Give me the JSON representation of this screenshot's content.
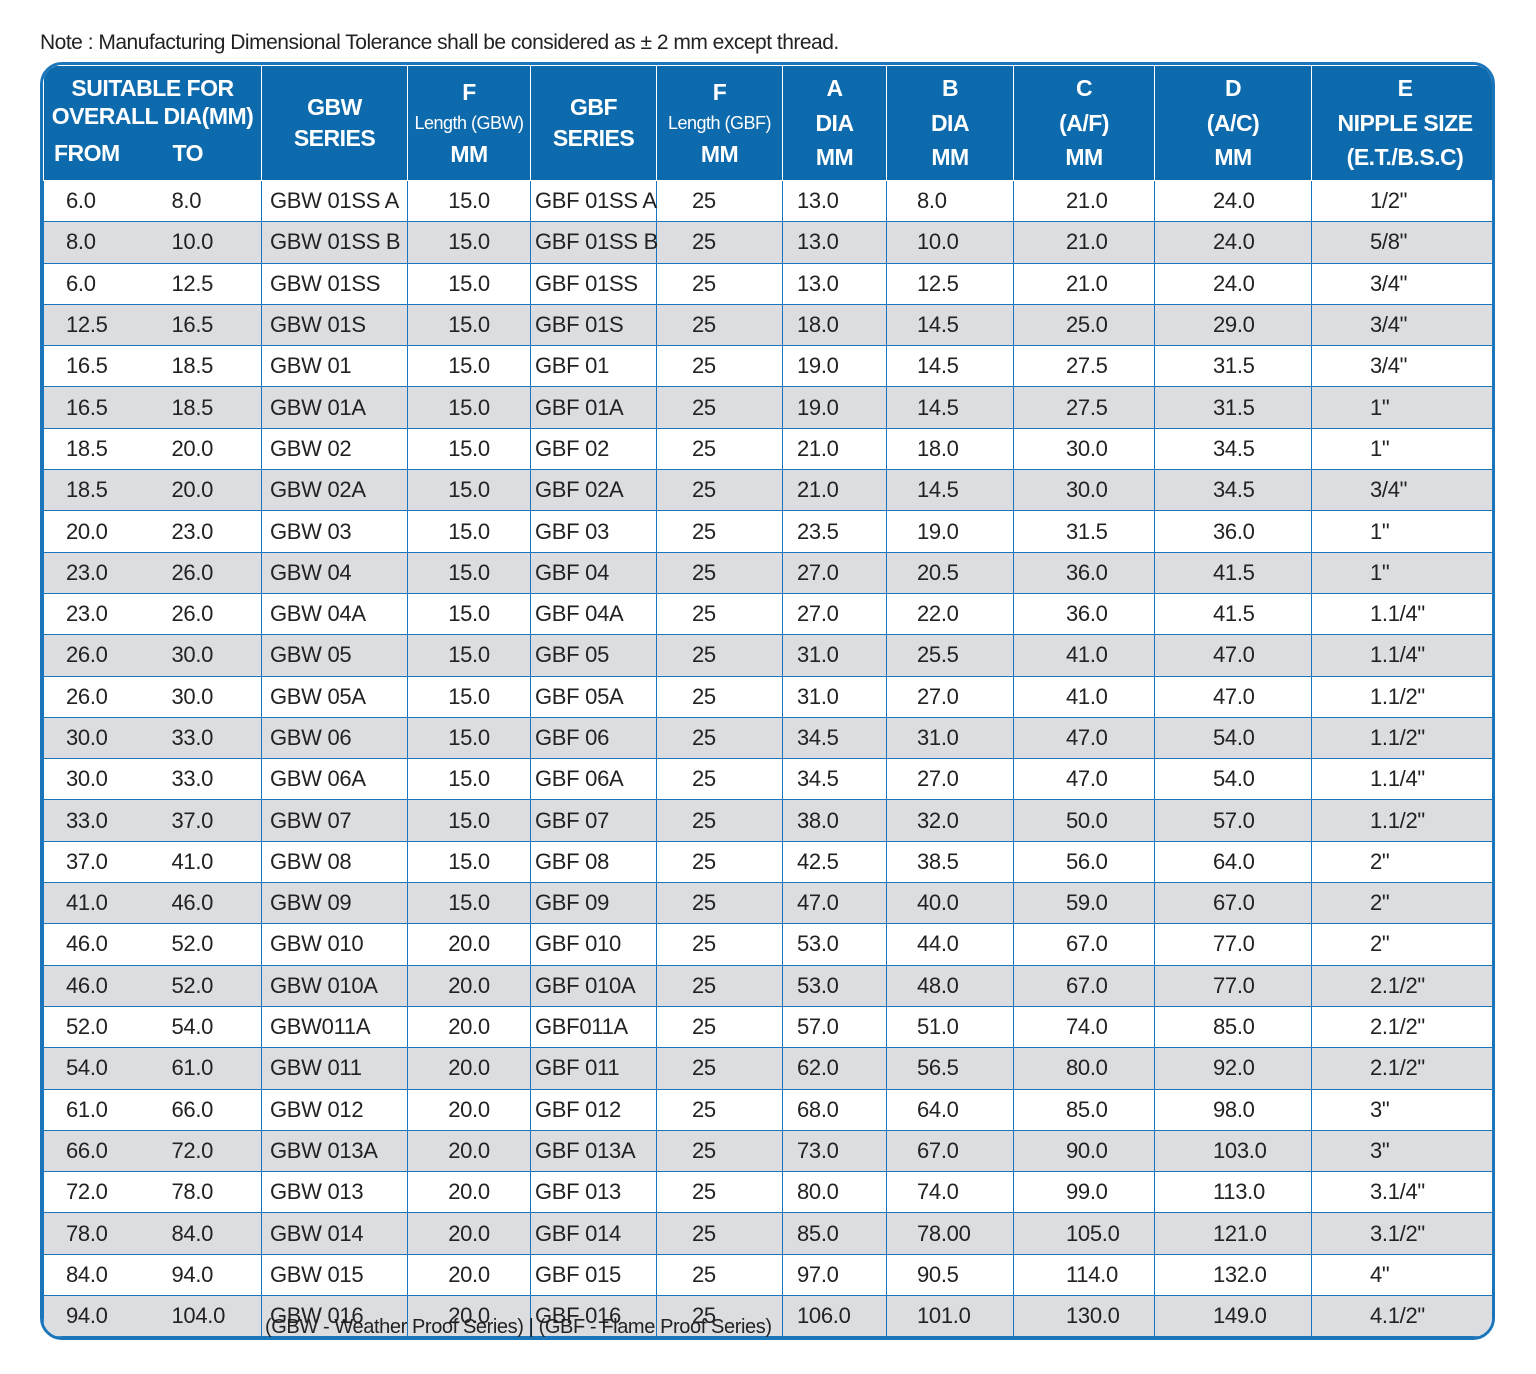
{
  "note": "Note : Manufacturing Dimensional Tolerance shall be considered as ± 2 mm except thread.",
  "table": {
    "header": {
      "range": {
        "lines": [
          "SUITABLE FOR",
          "OVERALL DIA(MM)"
        ],
        "from": "FROM",
        "to": "TO"
      },
      "columns": [
        [
          "GBW",
          "SERIES"
        ],
        [
          "F",
          "Length (GBW)",
          "MM"
        ],
        [
          "GBF",
          "SERIES"
        ],
        [
          "F",
          "Length (GBF)",
          "MM"
        ],
        [
          "A",
          "DIA",
          "MM"
        ],
        [
          "B",
          "DIA",
          "MM"
        ],
        [
          "C",
          "(A/F)",
          "MM"
        ],
        [
          "D",
          "(A/C)",
          "MM"
        ],
        [
          "E",
          "NIPPLE SIZE",
          "(E.T./B.S.C)"
        ]
      ]
    },
    "rows": [
      [
        "6.0",
        "8.0",
        "GBW 01SS A",
        "15.0",
        "GBF 01SS A",
        "25",
        "13.0",
        "8.0",
        "21.0",
        "24.0",
        "1/2\""
      ],
      [
        "8.0",
        "10.0",
        "GBW 01SS B",
        "15.0",
        "GBF 01SS B",
        "25",
        "13.0",
        "10.0",
        "21.0",
        "24.0",
        "5/8\""
      ],
      [
        "6.0",
        "12.5",
        "GBW 01SS",
        "15.0",
        "GBF 01SS",
        "25",
        "13.0",
        "12.5",
        "21.0",
        "24.0",
        "3/4\""
      ],
      [
        "12.5",
        "16.5",
        "GBW 01S",
        "15.0",
        "GBF 01S",
        "25",
        "18.0",
        "14.5",
        "25.0",
        "29.0",
        "3/4\""
      ],
      [
        "16.5",
        "18.5",
        "GBW 01",
        "15.0",
        "GBF 01",
        "25",
        "19.0",
        "14.5",
        "27.5",
        "31.5",
        "3/4\""
      ],
      [
        "16.5",
        "18.5",
        "GBW 01A",
        "15.0",
        "GBF 01A",
        "25",
        "19.0",
        "14.5",
        "27.5",
        "31.5",
        "1\""
      ],
      [
        "18.5",
        "20.0",
        "GBW 02",
        "15.0",
        "GBF 02",
        "25",
        "21.0",
        "18.0",
        "30.0",
        "34.5",
        "1\""
      ],
      [
        "18.5",
        "20.0",
        "GBW 02A",
        "15.0",
        "GBF 02A",
        "25",
        "21.0",
        "14.5",
        "30.0",
        "34.5",
        "3/4\""
      ],
      [
        "20.0",
        "23.0",
        "GBW 03",
        "15.0",
        "GBF 03",
        "25",
        "23.5",
        "19.0",
        "31.5",
        "36.0",
        "1\""
      ],
      [
        "23.0",
        "26.0",
        "GBW 04",
        "15.0",
        "GBF 04",
        "25",
        "27.0",
        "20.5",
        "36.0",
        "41.5",
        "1\""
      ],
      [
        "23.0",
        "26.0",
        "GBW 04A",
        "15.0",
        "GBF 04A",
        "25",
        "27.0",
        "22.0",
        "36.0",
        "41.5",
        "1.1/4\""
      ],
      [
        "26.0",
        "30.0",
        "GBW 05",
        "15.0",
        "GBF 05",
        "25",
        "31.0",
        "25.5",
        "41.0",
        "47.0",
        "1.1/4\""
      ],
      [
        "26.0",
        "30.0",
        "GBW 05A",
        "15.0",
        "GBF 05A",
        "25",
        "31.0",
        "27.0",
        "41.0",
        "47.0",
        "1.1/2\""
      ],
      [
        "30.0",
        "33.0",
        "GBW 06",
        "15.0",
        "GBF 06",
        "25",
        "34.5",
        "31.0",
        "47.0",
        "54.0",
        "1.1/2\""
      ],
      [
        "30.0",
        "33.0",
        "GBW 06A",
        "15.0",
        "GBF 06A",
        "25",
        "34.5",
        "27.0",
        "47.0",
        "54.0",
        "1.1/4\""
      ],
      [
        "33.0",
        "37.0",
        "GBW 07",
        "15.0",
        "GBF 07",
        "25",
        "38.0",
        "32.0",
        "50.0",
        "57.0",
        "1.1/2\""
      ],
      [
        "37.0",
        "41.0",
        "GBW 08",
        "15.0",
        "GBF 08",
        "25",
        "42.5",
        "38.5",
        "56.0",
        "64.0",
        "2\""
      ],
      [
        "41.0",
        "46.0",
        "GBW 09",
        "15.0",
        "GBF 09",
        "25",
        "47.0",
        "40.0",
        "59.0",
        "67.0",
        "2\""
      ],
      [
        "46.0",
        "52.0",
        "GBW 010",
        "20.0",
        "GBF 010",
        "25",
        "53.0",
        "44.0",
        "67.0",
        "77.0",
        "2\""
      ],
      [
        "46.0",
        "52.0",
        "GBW 010A",
        "20.0",
        "GBF 010A",
        "25",
        "53.0",
        "48.0",
        "67.0",
        "77.0",
        "2.1/2\""
      ],
      [
        "52.0",
        "54.0",
        "GBW011A",
        "20.0",
        "GBF011A",
        "25",
        "57.0",
        "51.0",
        "74.0",
        "85.0",
        "2.1/2\""
      ],
      [
        "54.0",
        "61.0",
        "GBW 011",
        "20.0",
        "GBF 011",
        "25",
        "62.0",
        "56.5",
        "80.0",
        "92.0",
        "2.1/2\""
      ],
      [
        "61.0",
        "66.0",
        "GBW 012",
        "20.0",
        "GBF 012",
        "25",
        "68.0",
        "64.0",
        "85.0",
        "98.0",
        "3\""
      ],
      [
        "66.0",
        "72.0",
        "GBW 013A",
        "20.0",
        "GBF 013A",
        "25",
        "73.0",
        "67.0",
        "90.0",
        "103.0",
        "3\""
      ],
      [
        "72.0",
        "78.0",
        "GBW 013",
        "20.0",
        "GBF 013",
        "25",
        "80.0",
        "74.0",
        "99.0",
        "113.0",
        "3.1/4\""
      ],
      [
        "78.0",
        "84.0",
        "GBW 014",
        "20.0",
        "GBF 014",
        "25",
        "85.0",
        "78.00",
        "105.0",
        "121.0",
        "3.1/2\""
      ],
      [
        "84.0",
        "94.0",
        "GBW 015",
        "20.0",
        "GBF 015",
        "25",
        "97.0",
        "90.5",
        "114.0",
        "132.0",
        "4\""
      ],
      [
        "94.0",
        "104.0",
        "GBW 016",
        "20.0",
        "GBF 016",
        "25",
        "106.0",
        "101.0",
        "130.0",
        "149.0",
        "4.1/2\""
      ]
    ]
  },
  "footer": "(GBW - Weather Proof Series) | (GBF - Flame Proof Series)"
}
